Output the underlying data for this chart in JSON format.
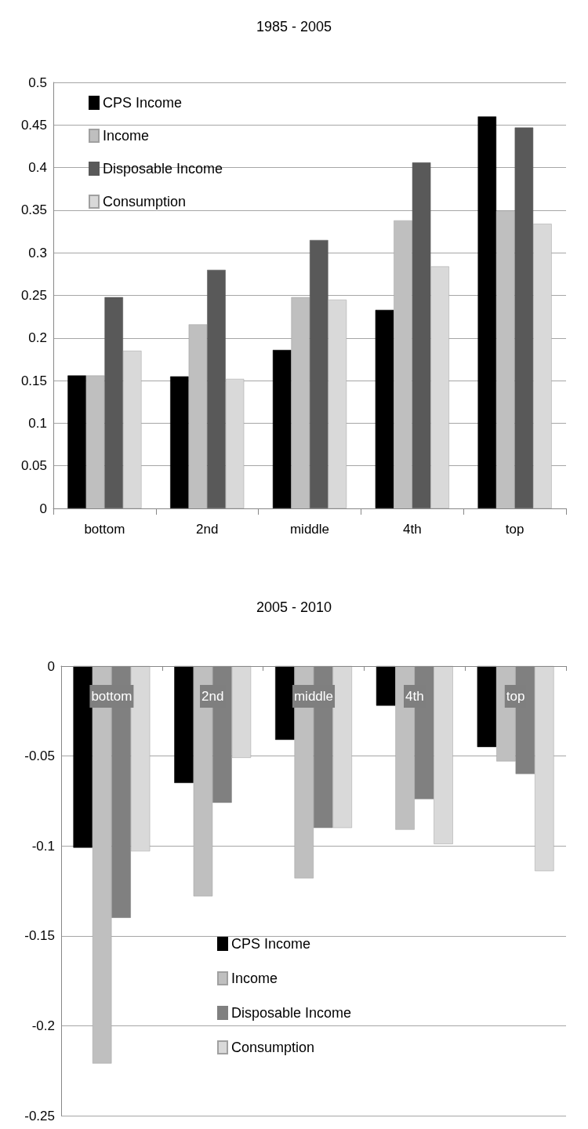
{
  "chart_data": [
    {
      "type": "bar",
      "title": "1985 - 2005",
      "categories": [
        "bottom",
        "2nd",
        "middle",
        "4th",
        "top"
      ],
      "series": [
        {
          "name": "CPS Income",
          "color": "#000000",
          "values": [
            0.156,
            0.155,
            0.186,
            0.233,
            0.46
          ]
        },
        {
          "name": "Income",
          "color": "#bfbfbf",
          "values": [
            0.156,
            0.216,
            0.248,
            0.338,
            0.349
          ]
        },
        {
          "name": "Disposable Income",
          "color": "#595959",
          "values": [
            0.248,
            0.28,
            0.315,
            0.406,
            0.447
          ]
        },
        {
          "name": "Consumption",
          "color": "#d9d9d9",
          "values": [
            0.185,
            0.152,
            0.245,
            0.284,
            0.334
          ]
        }
      ],
      "ylim": [
        0,
        0.5
      ],
      "yticks": [
        0,
        0.05,
        0.1,
        0.15,
        0.2,
        0.25,
        0.3,
        0.35,
        0.4,
        0.45,
        0.5
      ],
      "grid": "y",
      "legend": "top left"
    },
    {
      "type": "bar",
      "title": "2005 - 2010",
      "categories": [
        "bottom",
        "2nd",
        "middle",
        "4th",
        "top"
      ],
      "series": [
        {
          "name": "CPS Income",
          "color": "#000000",
          "values": [
            -0.101,
            -0.065,
            -0.041,
            -0.022,
            -0.045
          ]
        },
        {
          "name": "Income",
          "color": "#bfbfbf",
          "values": [
            -0.221,
            -0.128,
            -0.118,
            -0.091,
            -0.053
          ]
        },
        {
          "name": "Disposable Income",
          "color": "#808080",
          "values": [
            -0.14,
            -0.076,
            -0.09,
            -0.074,
            -0.06
          ]
        },
        {
          "name": "Consumption",
          "color": "#d9d9d9",
          "values": [
            -0.103,
            -0.051,
            -0.09,
            -0.099,
            -0.114
          ]
        }
      ],
      "ylim": [
        -0.25,
        0
      ],
      "yticks": [
        -0.25,
        -0.2,
        -0.15,
        -0.1,
        -0.05,
        0
      ],
      "grid": "y",
      "legend": "bottom"
    }
  ]
}
